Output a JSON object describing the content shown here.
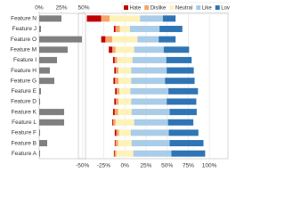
{
  "chart_data": [
    {
      "type": "bar",
      "orientation": "horizontal",
      "categories": [
        "Feature N",
        "Feature J",
        "Feature O",
        "Feature M",
        "Feature I",
        "Feature H",
        "Feature G",
        "Feature E",
        "Feature D",
        "Feature K",
        "Feature L",
        "Feature F",
        "Feature B",
        "Feature A"
      ],
      "values": [
        25,
        2,
        48,
        32,
        20,
        12,
        17,
        2,
        1,
        28,
        28,
        1,
        9,
        1
      ],
      "color": "#808080",
      "xlim": [
        0,
        52
      ],
      "xticks": [
        {
          "value": 0,
          "label": "0%"
        },
        {
          "value": 25,
          "label": "25%"
        },
        {
          "value": 50,
          "label": "50%"
        }
      ]
    },
    {
      "type": "diverging-stacked-bar",
      "orientation": "horizontal",
      "series": [
        {
          "name": "Hate",
          "color": "#c00000",
          "values": [
            17,
            2,
            5,
            4,
            2,
            2,
            2,
            2,
            2,
            2,
            1,
            2,
            1,
            1
          ]
        },
        {
          "name": "Dislike",
          "color": "#f4a66a",
          "values": [
            10,
            5,
            8,
            4,
            3,
            3,
            4,
            3,
            3,
            4,
            3,
            3,
            3,
            2
          ]
        },
        {
          "name": "Neutral",
          "color": "#fff2b8",
          "values": [
            36,
            12,
            30,
            22,
            18,
            15,
            15,
            13,
            15,
            16,
            22,
            14,
            16,
            20
          ]
        },
        {
          "name": "Like",
          "color": "#a9cce8",
          "values": [
            27,
            35,
            25,
            35,
            40,
            42,
            40,
            45,
            42,
            45,
            40,
            45,
            45,
            45
          ]
        },
        {
          "name": "Love",
          "color": "#2f75b5",
          "values": [
            15,
            27,
            20,
            30,
            30,
            32,
            35,
            35,
            35,
            32,
            30,
            35,
            40,
            40
          ]
        }
      ],
      "xlim": [
        -55,
        122
      ],
      "xticks": [
        {
          "value": -50,
          "label": "-50%"
        },
        {
          "value": -25,
          "label": "-25%"
        },
        {
          "value": 0,
          "label": "0%"
        },
        {
          "value": 25,
          "label": "25%"
        },
        {
          "value": 50,
          "label": "50%"
        },
        {
          "value": 75,
          "label": "75%"
        },
        {
          "value": 100,
          "label": "100%"
        }
      ],
      "legend": "top-right"
    }
  ]
}
